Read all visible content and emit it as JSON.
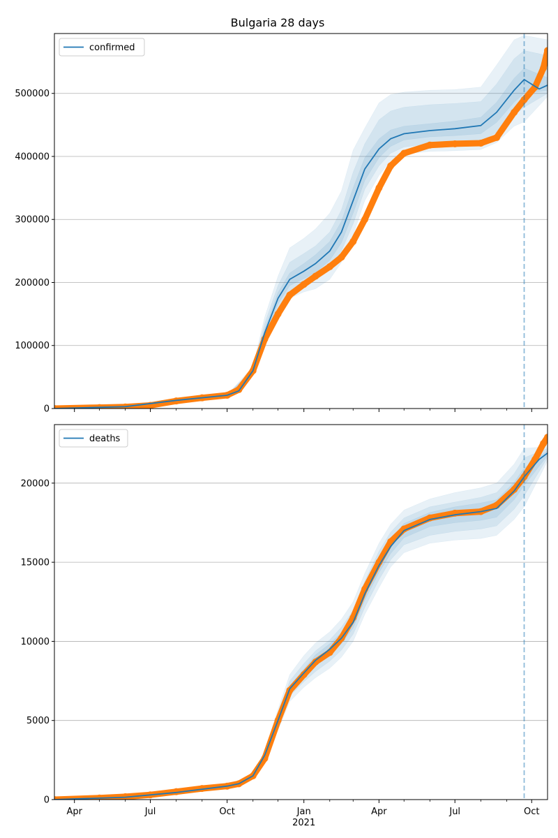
{
  "title": "Bulgaria 28 days",
  "colors": {
    "model": "#1f77b4",
    "observed": "#ff7f0e",
    "band": "#1f77b4",
    "grid": "#b0b0b0",
    "cutoff": "#1f77b4"
  },
  "chart_data": [
    {
      "type": "line",
      "legend": "confirmed",
      "legend_position": "upper-left",
      "grid": "horizontal",
      "x_range": [
        "2020-03-08",
        "2021-10-20"
      ],
      "ylim": [
        0,
        595000
      ],
      "y_ticks": [
        0,
        100000,
        200000,
        300000,
        400000,
        500000
      ],
      "y_tick_labels": [
        "0",
        "100000",
        "200000",
        "300000",
        "400000",
        "500000"
      ],
      "forecast_start": "2021-09-22",
      "model": {
        "name": "confirmed",
        "x": [
          "2020-03-08",
          "2020-06-01",
          "2020-08-01",
          "2020-10-01",
          "2020-10-15",
          "2020-11-01",
          "2020-11-15",
          "2020-12-01",
          "2020-12-15",
          "2021-01-01",
          "2021-01-15",
          "2021-02-01",
          "2021-02-15",
          "2021-03-01",
          "2021-03-15",
          "2021-04-01",
          "2021-04-15",
          "2021-05-01",
          "2021-06-01",
          "2021-07-01",
          "2021-08-01",
          "2021-08-20",
          "2021-09-10",
          "2021-09-22",
          "2021-10-10",
          "2021-10-20"
        ],
        "y": [
          0,
          3000,
          13000,
          21000,
          28000,
          60000,
          120000,
          175000,
          205000,
          218000,
          230000,
          250000,
          280000,
          330000,
          380000,
          412000,
          428000,
          436000,
          441000,
          444000,
          449000,
          470000,
          505000,
          522000,
          507000,
          513000
        ]
      },
      "bands": [
        {
          "x": [
            "2020-10-01",
            "2020-11-01",
            "2020-11-15",
            "2020-12-01",
            "2020-12-15",
            "2021-01-01",
            "2021-01-15",
            "2021-02-01",
            "2021-02-15",
            "2021-03-01",
            "2021-03-15",
            "2021-04-01",
            "2021-04-15",
            "2021-05-01",
            "2021-06-01",
            "2021-07-01",
            "2021-08-01",
            "2021-08-20",
            "2021-09-10",
            "2021-09-22",
            "2021-10-20"
          ],
          "lower": [
            20000,
            55000,
            100000,
            148000,
            175000,
            185000,
            190000,
            205000,
            232000,
            275000,
            330000,
            370000,
            393000,
            404000,
            408000,
            409000,
            411000,
            422000,
            448000,
            455000,
            495000
          ],
          "upper": [
            22000,
            66000,
            145000,
            210000,
            255000,
            270000,
            285000,
            310000,
            345000,
            410000,
            445000,
            485000,
            498000,
            502000,
            505000,
            506000,
            510000,
            545000,
            585000,
            592000,
            585000
          ]
        },
        {
          "x": [
            "2020-10-01",
            "2020-11-01",
            "2020-11-15",
            "2020-12-01",
            "2020-12-15",
            "2021-01-01",
            "2021-01-15",
            "2021-02-01",
            "2021-02-15",
            "2021-03-01",
            "2021-03-15",
            "2021-04-01",
            "2021-04-15",
            "2021-05-01",
            "2021-06-01",
            "2021-07-01",
            "2021-08-01",
            "2021-08-20",
            "2021-09-10",
            "2021-09-22",
            "2021-10-20"
          ],
          "lower": [
            20500,
            57000,
            108000,
            158000,
            185000,
            195000,
            205000,
            222000,
            250000,
            293000,
            348000,
            385000,
            405000,
            415000,
            420000,
            422000,
            424000,
            438000,
            465000,
            478000,
            500000
          ],
          "upper": [
            21500,
            63000,
            135000,
            195000,
            232000,
            246000,
            258000,
            280000,
            315000,
            375000,
            420000,
            458000,
            472000,
            478000,
            482000,
            484000,
            487000,
            515000,
            555000,
            568000,
            560000
          ]
        },
        {
          "x": [
            "2020-10-01",
            "2020-11-01",
            "2020-11-15",
            "2020-12-01",
            "2020-12-15",
            "2021-01-01",
            "2021-01-15",
            "2021-02-01",
            "2021-02-15",
            "2021-03-01",
            "2021-03-15",
            "2021-04-01",
            "2021-04-15",
            "2021-05-01",
            "2021-06-01",
            "2021-07-01",
            "2021-08-01",
            "2021-08-20",
            "2021-09-10",
            "2021-09-22",
            "2021-10-20"
          ],
          "lower": [
            20800,
            58500,
            114000,
            166000,
            195000,
            206000,
            216000,
            235000,
            263000,
            310000,
            362000,
            398000,
            416000,
            426000,
            431000,
            433000,
            436000,
            454000,
            486000,
            500000,
            505000
          ],
          "upper": [
            21200,
            61500,
            126000,
            184000,
            215000,
            230000,
            244000,
            265000,
            297000,
            350000,
            398000,
            428000,
            442000,
            448000,
            452000,
            456000,
            462000,
            486000,
            524000,
            540000,
            525000
          ]
        }
      ],
      "observed": {
        "name": "observed",
        "x": [
          "2020-03-08",
          "2020-05-01",
          "2020-06-01",
          "2020-07-01",
          "2020-08-01",
          "2020-09-01",
          "2020-10-01",
          "2020-10-15",
          "2020-11-01",
          "2020-11-15",
          "2020-12-01",
          "2020-12-15",
          "2021-01-01",
          "2021-01-15",
          "2021-02-01",
          "2021-02-15",
          "2021-03-01",
          "2021-03-15",
          "2021-04-01",
          "2021-04-15",
          "2021-05-01",
          "2021-06-01",
          "2021-07-01",
          "2021-08-01",
          "2021-08-20",
          "2021-09-10",
          "2021-09-22",
          "2021-10-05",
          "2021-10-15",
          "2021-10-20"
        ],
        "y": [
          0,
          1500,
          2500,
          5000,
          12000,
          17000,
          21000,
          30000,
          60000,
          110000,
          150000,
          180000,
          197000,
          210000,
          225000,
          240000,
          265000,
          300000,
          350000,
          385000,
          405000,
          418000,
          420000,
          421000,
          430000,
          470000,
          490000,
          510000,
          540000,
          568000
        ]
      }
    },
    {
      "type": "line",
      "legend": "deaths",
      "legend_position": "upper-left",
      "grid": "horizontal",
      "x_range": [
        "2020-03-08",
        "2021-10-20"
      ],
      "ylim": [
        0,
        23700
      ],
      "y_ticks": [
        0,
        5000,
        10000,
        15000,
        20000
      ],
      "y_tick_labels": [
        "0",
        "5000",
        "10000",
        "15000",
        "20000"
      ],
      "x_ticks": [
        "2020-04-01",
        "2020-07-01",
        "2020-10-01",
        "2021-01-01",
        "2021-04-01",
        "2021-07-01",
        "2021-10-01"
      ],
      "x_tick_labels": [
        "Apr",
        "Jul",
        "Oct",
        "Jan",
        "Apr",
        "Jul",
        "Oct"
      ],
      "x_minor_ticks": [
        "2020-05-01",
        "2020-06-01",
        "2020-08-01",
        "2020-09-01",
        "2020-11-01",
        "2020-12-01",
        "2021-02-01",
        "2021-03-01",
        "2021-05-01",
        "2021-06-01",
        "2021-08-01",
        "2021-09-01"
      ],
      "x_year_label": "2021",
      "forecast_start": "2021-09-22",
      "model": {
        "name": "deaths",
        "x": [
          "2020-03-08",
          "2020-06-01",
          "2020-08-01",
          "2020-10-01",
          "2020-10-15",
          "2020-11-01",
          "2020-11-15",
          "2020-12-01",
          "2020-12-15",
          "2021-01-01",
          "2021-01-15",
          "2021-02-01",
          "2021-02-15",
          "2021-03-01",
          "2021-03-15",
          "2021-04-01",
          "2021-04-15",
          "2021-05-01",
          "2021-06-01",
          "2021-07-01",
          "2021-08-01",
          "2021-08-20",
          "2021-09-10",
          "2021-09-22",
          "2021-10-10",
          "2021-10-20"
        ],
        "y": [
          0,
          150,
          450,
          850,
          1000,
          1500,
          2800,
          5000,
          7000,
          8000,
          8800,
          9500,
          10200,
          11200,
          13000,
          14800,
          16000,
          17000,
          17700,
          18000,
          18200,
          18400,
          19500,
          20400,
          21500,
          21900
        ]
      },
      "bands": [
        {
          "x": [
            "2020-11-01",
            "2020-11-15",
            "2020-12-01",
            "2020-12-15",
            "2021-01-01",
            "2021-01-15",
            "2021-02-01",
            "2021-02-15",
            "2021-03-01",
            "2021-03-15",
            "2021-04-01",
            "2021-04-15",
            "2021-05-01",
            "2021-06-01",
            "2021-07-01",
            "2021-08-01",
            "2021-08-20",
            "2021-09-10",
            "2021-09-22",
            "2021-10-20"
          ],
          "lower": [
            1450,
            2500,
            4400,
            6200,
            7100,
            7700,
            8300,
            9000,
            10000,
            11700,
            13400,
            14700,
            15600,
            16200,
            16400,
            16500,
            16700,
            17700,
            18500,
            21400
          ],
          "upper": [
            1550,
            3100,
            5700,
            7900,
            9100,
            9900,
            10600,
            11400,
            12500,
            14300,
            16200,
            17400,
            18300,
            19000,
            19400,
            19700,
            20000,
            21200,
            22200,
            22300
          ]
        },
        {
          "x": [
            "2020-11-01",
            "2020-11-15",
            "2020-12-01",
            "2020-12-15",
            "2021-01-01",
            "2021-01-15",
            "2021-02-01",
            "2021-02-15",
            "2021-03-01",
            "2021-03-15",
            "2021-04-01",
            "2021-04-15",
            "2021-05-01",
            "2021-06-01",
            "2021-07-01",
            "2021-08-01",
            "2021-08-20",
            "2021-09-10",
            "2021-09-22",
            "2021-10-20"
          ],
          "lower": [
            1470,
            2600,
            4650,
            6550,
            7450,
            8100,
            8750,
            9450,
            10450,
            12150,
            13900,
            15150,
            16100,
            16700,
            16950,
            17100,
            17300,
            18350,
            19200,
            21600
          ],
          "upper": [
            1530,
            3000,
            5400,
            7500,
            8600,
            9400,
            10100,
            10900,
            11950,
            13800,
            15700,
            16900,
            17800,
            18500,
            18800,
            19100,
            19400,
            20600,
            21600,
            22200
          ]
        },
        {
          "x": [
            "2020-11-01",
            "2020-11-15",
            "2020-12-01",
            "2020-12-15",
            "2021-01-01",
            "2021-01-15",
            "2021-02-01",
            "2021-02-15",
            "2021-03-01",
            "2021-03-15",
            "2021-04-01",
            "2021-04-15",
            "2021-05-01",
            "2021-06-01",
            "2021-07-01",
            "2021-08-01",
            "2021-08-20",
            "2021-09-10",
            "2021-09-22",
            "2021-10-20"
          ],
          "lower": [
            1490,
            2700,
            4820,
            6800,
            7750,
            8450,
            9150,
            9850,
            10850,
            12600,
            14350,
            15550,
            16550,
            17250,
            17500,
            17650,
            17850,
            18950,
            19850,
            21750
          ],
          "upper": [
            1510,
            2900,
            5180,
            7200,
            8250,
            9150,
            9850,
            10550,
            11550,
            13400,
            15250,
            16450,
            17450,
            18150,
            18500,
            18750,
            18950,
            20050,
            20950,
            22050
          ]
        }
      ],
      "observed": {
        "name": "observed",
        "x": [
          "2020-03-08",
          "2020-05-01",
          "2020-06-01",
          "2020-07-01",
          "2020-08-01",
          "2020-09-01",
          "2020-10-01",
          "2020-10-15",
          "2020-11-01",
          "2020-11-15",
          "2020-12-01",
          "2020-12-15",
          "2021-01-01",
          "2021-01-15",
          "2021-02-01",
          "2021-02-15",
          "2021-03-01",
          "2021-03-15",
          "2021-04-01",
          "2021-04-15",
          "2021-05-01",
          "2021-06-01",
          "2021-07-01",
          "2021-08-01",
          "2021-08-20",
          "2021-09-10",
          "2021-09-22",
          "2021-10-05",
          "2021-10-15",
          "2021-10-20"
        ],
        "y": [
          0,
          100,
          180,
          300,
          500,
          700,
          850,
          1000,
          1500,
          2600,
          5000,
          6900,
          7900,
          8700,
          9300,
          10200,
          11500,
          13300,
          15000,
          16300,
          17100,
          17800,
          18100,
          18200,
          18600,
          19600,
          20400,
          21500,
          22500,
          22900
        ]
      }
    }
  ]
}
